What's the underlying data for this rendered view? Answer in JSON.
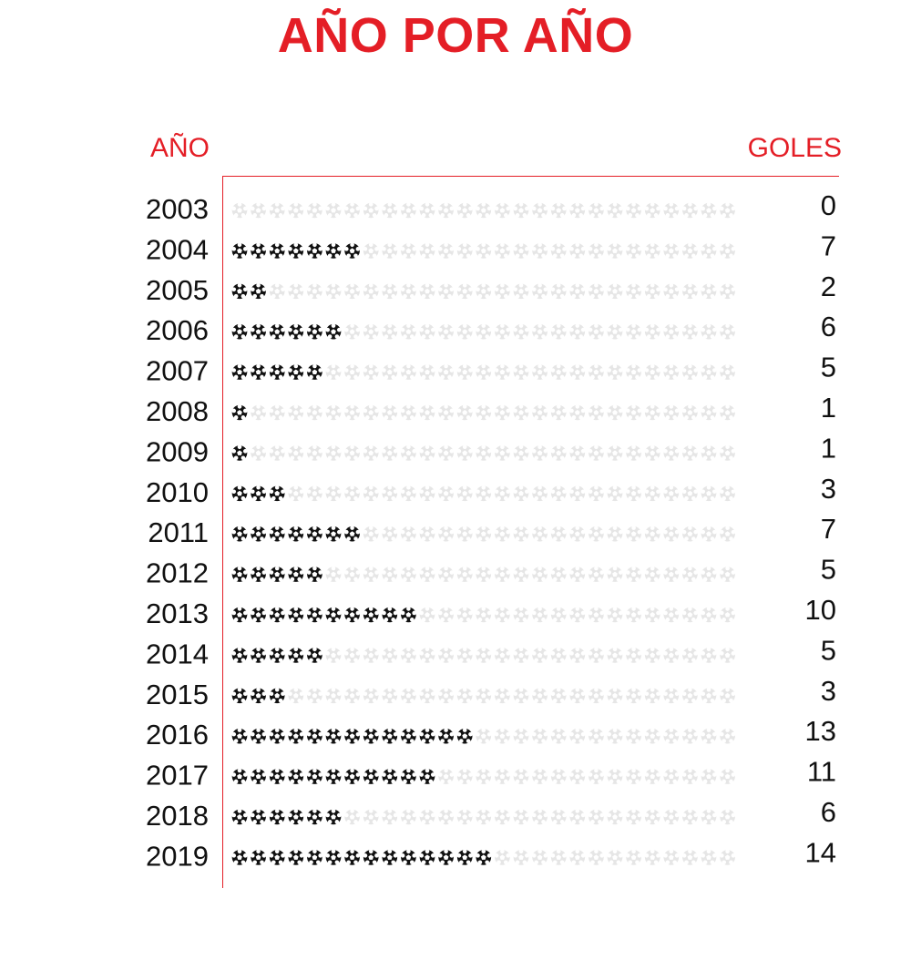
{
  "header": {
    "title": "AÑO POR AÑO",
    "left_label": "AÑO",
    "right_label": "GOLES"
  },
  "colors": {
    "accent": "#e41e26",
    "ball_filled": "#111111",
    "ball_empty": "#e6e6e6",
    "text": "#111111"
  },
  "chart_data": {
    "type": "bar",
    "icon": "soccer-ball-icon",
    "max_icons_per_row": 27,
    "categories": [
      "2003",
      "2004",
      "2005",
      "2006",
      "2007",
      "2008",
      "2009",
      "2010",
      "2011",
      "2012",
      "2013",
      "2014",
      "2015",
      "2016",
      "2017",
      "2018",
      "2019"
    ],
    "values": [
      0,
      7,
      2,
      6,
      5,
      1,
      1,
      3,
      7,
      5,
      10,
      5,
      3,
      13,
      11,
      6,
      14
    ],
    "xlabel": "GOLES",
    "ylabel": "AÑO"
  }
}
